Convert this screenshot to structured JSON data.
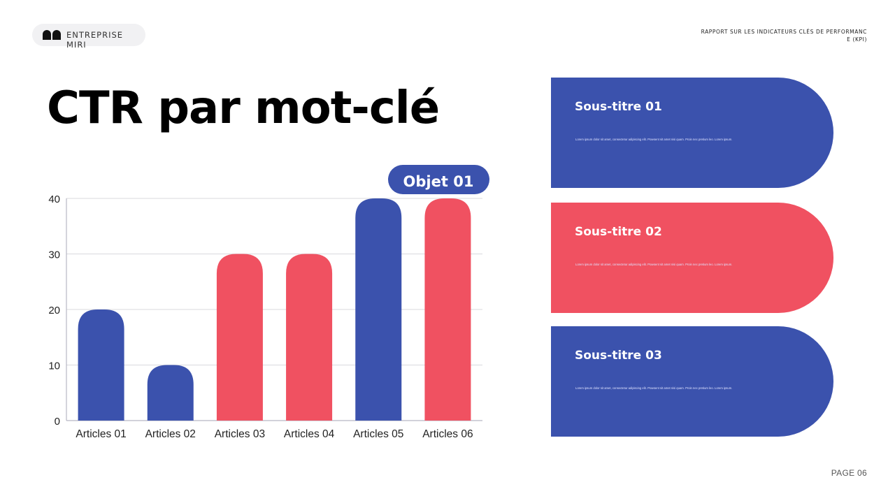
{
  "header": {
    "brand": "ENTREPRISE MIRI",
    "report_title": "RAPPORT SUR LES INDICATEURS CLÉS DE PERFORMANCE (KPI)"
  },
  "title": "CTR par mot-clé",
  "colors": {
    "blue": "#3b52ad",
    "red": "#f05161",
    "grid": "#d9d9de",
    "axis": "#b8b8c4"
  },
  "chart_data": {
    "type": "bar",
    "title": "",
    "xlabel": "",
    "ylabel": "",
    "categories": [
      "Articles 01",
      "Articles 02",
      "Articles 03",
      "Articles 04",
      "Articles 05",
      "Articles 06"
    ],
    "values": [
      20,
      10,
      30,
      30,
      40,
      40
    ],
    "bar_colors": [
      "blue",
      "blue",
      "red",
      "red",
      "blue",
      "red"
    ],
    "ylim": [
      0,
      40
    ],
    "yticks": [
      0,
      10,
      20,
      30,
      40
    ],
    "grid": true,
    "annotation": "Objet 01"
  },
  "cards": [
    {
      "title": "Sous-titre 01",
      "text": "Lorem ipsum dolor sit amet, consectetur adipiscing elit. Praesent sit amet nisi quam. Proin nec pretium leo. Lorem ipsum.",
      "color": "blue"
    },
    {
      "title": "Sous-titre 02",
      "text": "Lorem ipsum dolor sit amet, consectetur adipiscing elit. Praesent sit amet nisi quam. Proin nec pretium leo. Lorem ipsum.",
      "color": "red"
    },
    {
      "title": "Sous-titre 03",
      "text": "Lorem ipsum dolor sit amet, consectetur adipiscing elit. Praesent sit amet nisi quam. Proin nec pretium leo. Lorem ipsum.",
      "color": "blue"
    }
  ],
  "footer": {
    "page": "PAGE 06"
  }
}
